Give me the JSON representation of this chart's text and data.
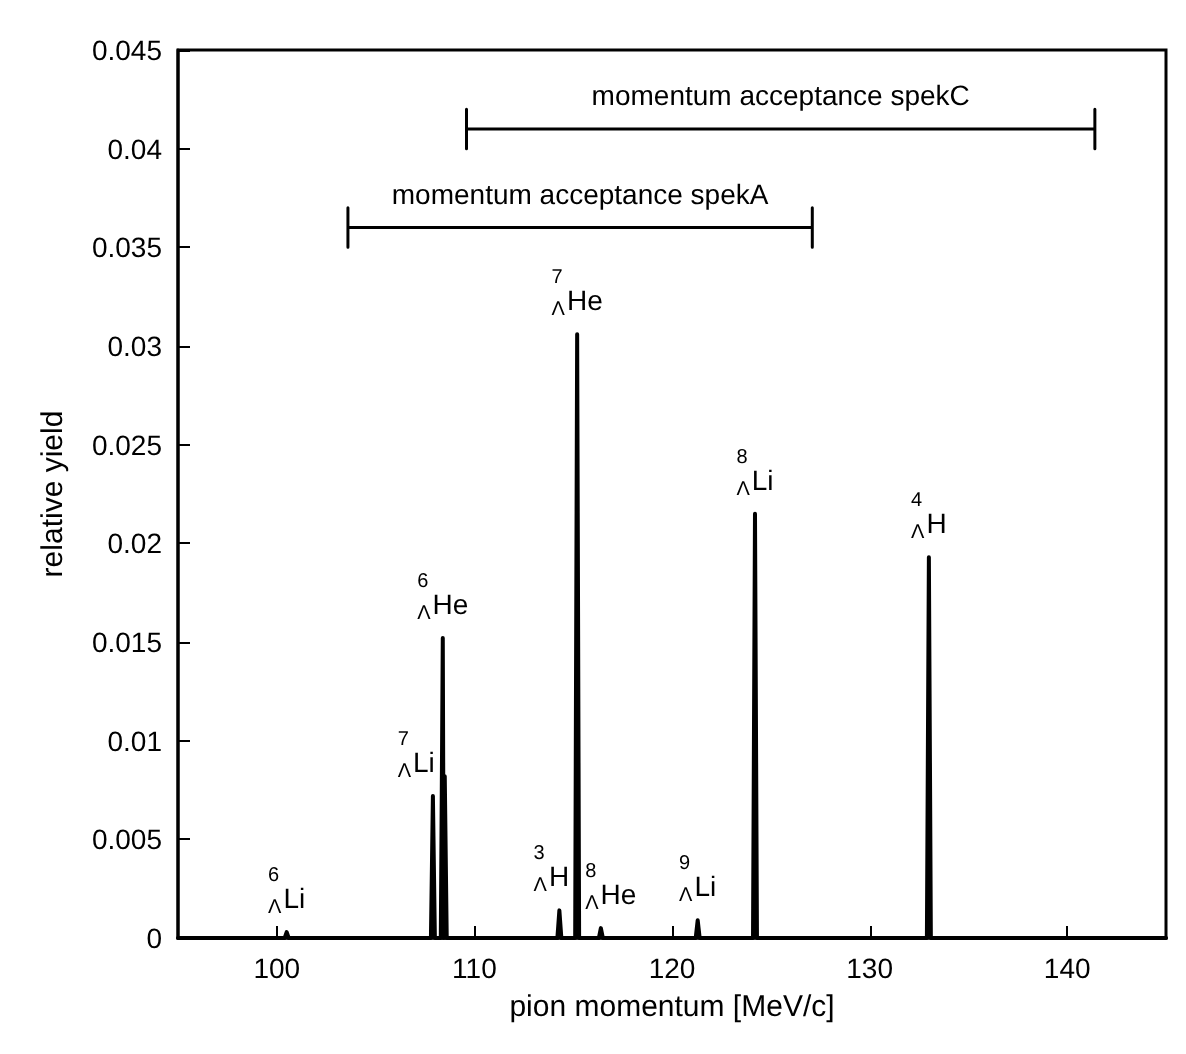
{
  "chart_data": {
    "type": "line",
    "xlabel": "pion momentum [MeV/c]",
    "ylabel": "relative yield",
    "x": [
      95,
      100.4,
      100.5,
      100.6,
      107.8,
      107.9,
      108.0,
      108.3,
      108.4,
      108.45,
      108.5,
      108.6,
      114.2,
      114.3,
      114.4,
      115.1,
      115.2,
      115.3,
      116.3,
      116.4,
      116.5,
      121.2,
      121.3,
      121.4,
      124.1,
      124.2,
      124.3,
      132.9,
      133.0,
      133.1,
      145
    ],
    "series": [
      {
        "color": "#000000",
        "values": [
          0,
          0,
          0.0003,
          0,
          0,
          0.0072,
          0,
          0,
          0.0152,
          0,
          0.0082,
          0,
          0,
          0.0014,
          0,
          0,
          0.0306,
          0,
          0,
          0.0005,
          0,
          0,
          0.0009,
          0,
          0,
          0.0215,
          0,
          0,
          0.0193,
          0,
          0
        ]
      },
      {
        "color": "#000000",
        "x": [
          109.6,
          109.6,
          109.6,
          141.4,
          141.4,
          141.4
        ],
        "values": [
          0.04,
          0.042,
          0.041,
          0.041,
          0.04,
          0.042
        ]
      },
      {
        "color": "#000000",
        "x": [
          103.6,
          103.6,
          103.6,
          127.1,
          127.1,
          127.1
        ],
        "values": [
          0.035,
          0.037,
          0.036,
          0.036,
          0.035,
          0.037
        ]
      }
    ],
    "xlim": [
      95,
      145
    ],
    "xticks": [
      100,
      110,
      120,
      130,
      140
    ],
    "ylim": [
      0,
      0.045
    ],
    "yticks": [
      0,
      0.005,
      0.01,
      0.015,
      0.02,
      0.025,
      0.03,
      0.035,
      0.04,
      0.045
    ],
    "grid": false,
    "marker": "none",
    "line_style": "solid",
    "annotations": [
      {
        "text": "momentum acceptance spekC",
        "x": 125.5,
        "y": 0.041
      },
      {
        "text": "momentum acceptance spekA",
        "x": 115.35,
        "y": 0.036
      },
      {
        "text": "$^{6}$$_{Λ}$Li",
        "x": 100.5,
        "y": 0.0003
      },
      {
        "text": "$^{7}$$_{Λ}$Li",
        "x": 107.9,
        "y": 0.0072
      },
      {
        "text": "$^{6}$$_{Λ}$He",
        "x": 108.4,
        "y": 0.0152
      },
      {
        "text": "$^{3}$$_{Λ}$H",
        "x": 114.3,
        "y": 0.0014
      },
      {
        "text": "$^{7}$$_{Λ}$He",
        "x": 115.2,
        "y": 0.0306
      },
      {
        "text": "$^{8}$$_{Λ}$He",
        "x": 116.4,
        "y": 0.0005
      },
      {
        "text": "$^{9}$$_{Λ}$Li",
        "x": 121.3,
        "y": 0.0009
      },
      {
        "text": "$^{8}$$_{Λ}$Li",
        "x": 124.2,
        "y": 0.0215
      },
      {
        "text": "$^{4}$$_{Λ}$H",
        "x": 133.0,
        "y": 0.0193
      }
    ]
  }
}
